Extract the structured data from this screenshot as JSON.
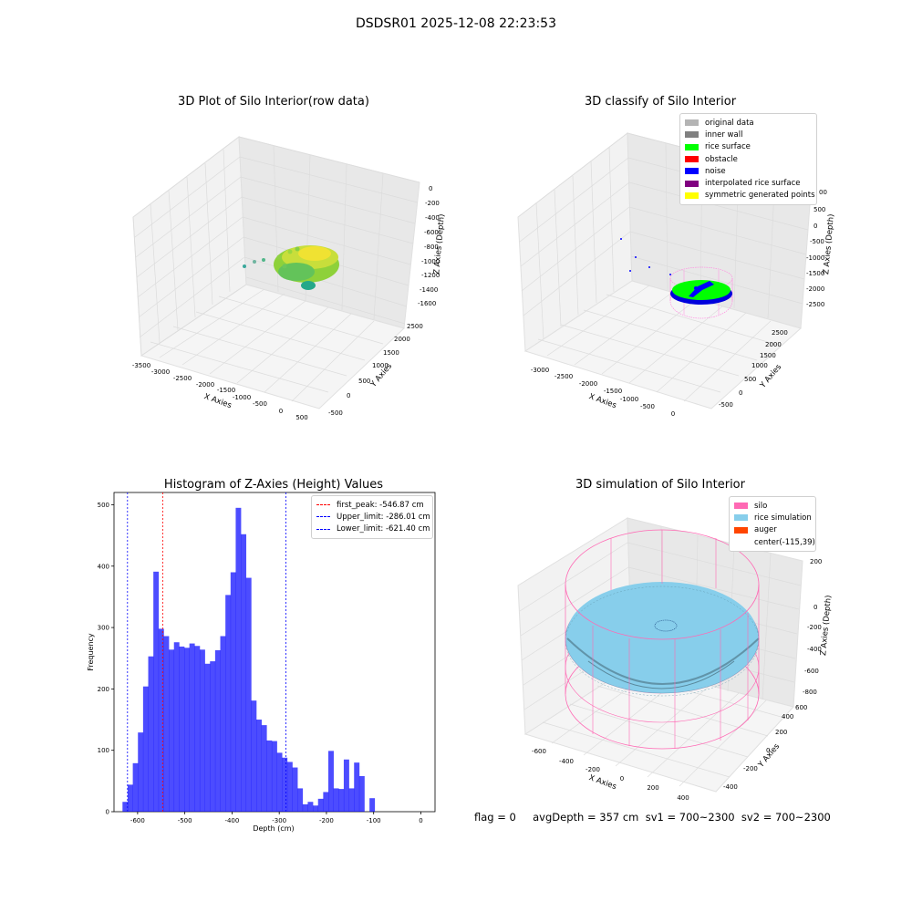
{
  "suptitle": "DSDSR01 2025-12-08 22:23:53",
  "plot1": {
    "title": "3D Plot of Silo Interior(row data)",
    "xlabel": "X Axies",
    "ylabel": "Y Axies",
    "zlabel": "Z Axies (Depth)",
    "xticks": [
      "-3500",
      "-3000",
      "-2500",
      "-2000",
      "-1500",
      "-1000",
      "-500",
      "0",
      "500"
    ],
    "yticks": [
      "-500",
      "0",
      "500",
      "1000",
      "1500",
      "2000",
      "2500"
    ],
    "zticks": [
      "0",
      "-200",
      "-400",
      "-600",
      "-800",
      "-1000",
      "-1200",
      "-1400",
      "-1600"
    ]
  },
  "plot2": {
    "title": "3D classify of Silo Interior",
    "xlabel": "X Axies",
    "ylabel": "Y Axies",
    "zlabel": "Z Axies (Depth)",
    "xticks": [
      "-3000",
      "-2500",
      "-2000",
      "-1500",
      "-1000",
      "-500",
      "0"
    ],
    "yticks": [
      "-500",
      "0",
      "500",
      "1000",
      "1500",
      "2000",
      "2500"
    ],
    "zticks": [
      "500",
      "0",
      "-500",
      "-1000",
      "-1500",
      "-2000",
      "-2500"
    ],
    "zticks_partial": "00",
    "legend": [
      {
        "label": "original data",
        "color": "#b4b4b4"
      },
      {
        "label": "inner wall",
        "color": "#808080"
      },
      {
        "label": "rice surface",
        "color": "#00ff00"
      },
      {
        "label": "obstacle",
        "color": "#ff0000"
      },
      {
        "label": "noise",
        "color": "#0000ff"
      },
      {
        "label": "interpolated rice surface",
        "color": "#800080"
      },
      {
        "label": "symmetric generated points",
        "color": "#ffff00"
      }
    ]
  },
  "plot4": {
    "title": "3D simulation of Silo Interior",
    "xlabel": "X Axies",
    "ylabel": "Y Axies",
    "zlabel": "Z Axies (Depth)",
    "xticks": [
      "-600",
      "-400",
      "-200",
      "0",
      "200",
      "400"
    ],
    "yticks": [
      "-400",
      "-200",
      "0",
      "200",
      "400",
      "600"
    ],
    "zticks": [
      "200",
      "0",
      "-200",
      "-400",
      "-600",
      "-800"
    ],
    "legend": [
      {
        "label": "silo",
        "color": "#ff69b4"
      },
      {
        "label": "rice simulation",
        "color": "#87ceeb"
      },
      {
        "label": "auger",
        "color": "#ff4500"
      },
      {
        "label": "center(-115,39)",
        "color": ""
      }
    ]
  },
  "footer": "flag = 0     avgDepth = 357 cm  sv1 = 700~2300  sv2 = 700~2300",
  "chart_data": {
    "type": "bar",
    "title": "Histogram of Z-Axies (Height) Values",
    "xlabel": "Depth (cm)",
    "ylabel": "Frequency",
    "bar_color": "#0000ff",
    "xlim": [
      -650,
      30
    ],
    "ylim": [
      0,
      520
    ],
    "xticks": [
      -600,
      -500,
      -400,
      -300,
      -200,
      -100,
      0
    ],
    "yticks": [
      0,
      100,
      200,
      300,
      400,
      500
    ],
    "bin_width": 10.9,
    "bin_start": -632,
    "values": [
      16,
      44,
      79,
      129,
      204,
      253,
      391,
      298,
      286,
      264,
      276,
      269,
      267,
      274,
      270,
      264,
      241,
      245,
      263,
      286,
      353,
      390,
      495,
      452,
      381,
      181,
      150,
      141,
      116,
      115,
      96,
      88,
      81,
      72,
      38,
      12,
      16,
      10,
      21,
      32,
      99,
      38,
      37,
      85,
      38,
      80,
      58,
      0,
      22
    ],
    "lines": [
      {
        "label": "first_peak: -546.87 cm",
        "x": -546.87,
        "color": "#ff0000"
      },
      {
        "label": "Upper_limit: -286.01 cm",
        "x": -286.01,
        "color": "#0000ff"
      },
      {
        "label": "Lower_limit: -621.40 cm",
        "x": -621.4,
        "color": "#0000ff"
      }
    ]
  }
}
